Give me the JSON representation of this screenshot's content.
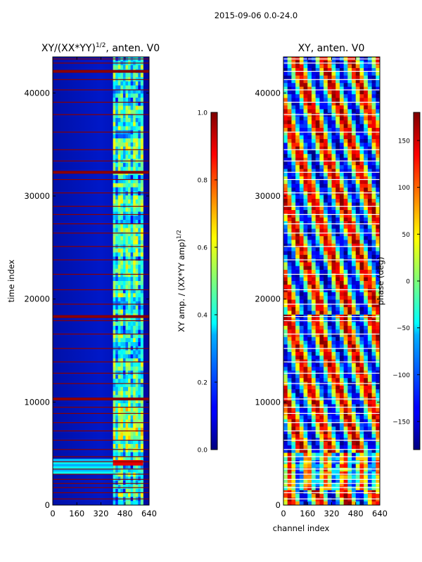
{
  "suptitle": "2015-09-06 0.0-24.0",
  "chart_data": [
    {
      "type": "heatmap",
      "title_main": "XY/(XX*YY)",
      "title_sup": "1/2",
      "title_tail": ", anten. V0",
      "xlabel": "",
      "ylabel": "time index",
      "xlim": [
        0,
        640
      ],
      "ylim": [
        0,
        43500
      ],
      "xticks": [
        0,
        160,
        320,
        480,
        640
      ],
      "yticks": [
        0,
        10000,
        20000,
        30000,
        40000
      ],
      "colorbar": {
        "label": "XY amp. / (XX*YY amp)",
        "label_sup": "1/2",
        "range": [
          0.0,
          1.0
        ],
        "ticks": [
          "0.0",
          "0.2",
          "0.4",
          "0.6",
          "0.8",
          "1.0"
        ],
        "tick_values": [
          0.0,
          0.2,
          0.4,
          0.6,
          0.8,
          1.0
        ],
        "colormap": "jet"
      },
      "flagged_rows": [
        600,
        1200,
        1700,
        2100,
        2500,
        3000,
        3500,
        4200,
        4700,
        5400,
        6300,
        7200,
        8000,
        8900,
        9500,
        10300,
        11800,
        12800,
        13900,
        15200,
        16600,
        17900,
        18300,
        19500,
        20900,
        22400,
        23800,
        25100,
        26400,
        27300,
        28200,
        29000,
        30300,
        31600,
        32300,
        33400,
        34500,
        36200,
        37900,
        39100,
        40300,
        41300,
        42100,
        42900,
        43300
      ],
      "bright_band_columns": [
        [
          400,
          600
        ]
      ]
    },
    {
      "type": "heatmap",
      "title_main": "XY, anten. V0",
      "xlabel": "channel index",
      "ylabel": "",
      "xlim": [
        0,
        640
      ],
      "ylim": [
        0,
        43500
      ],
      "xticks": [
        0,
        160,
        320,
        480,
        640
      ],
      "yticks": [
        0,
        10000,
        20000,
        30000,
        40000
      ],
      "colorbar": {
        "label": "phase (deg)",
        "range": [
          -180,
          180
        ],
        "ticks": [
          "150",
          "100",
          "50",
          "0",
          "−50",
          "−100",
          "−150"
        ],
        "tick_values": [
          150,
          100,
          50,
          0,
          -50,
          -100,
          -150
        ],
        "colormap": "jet"
      }
    }
  ]
}
